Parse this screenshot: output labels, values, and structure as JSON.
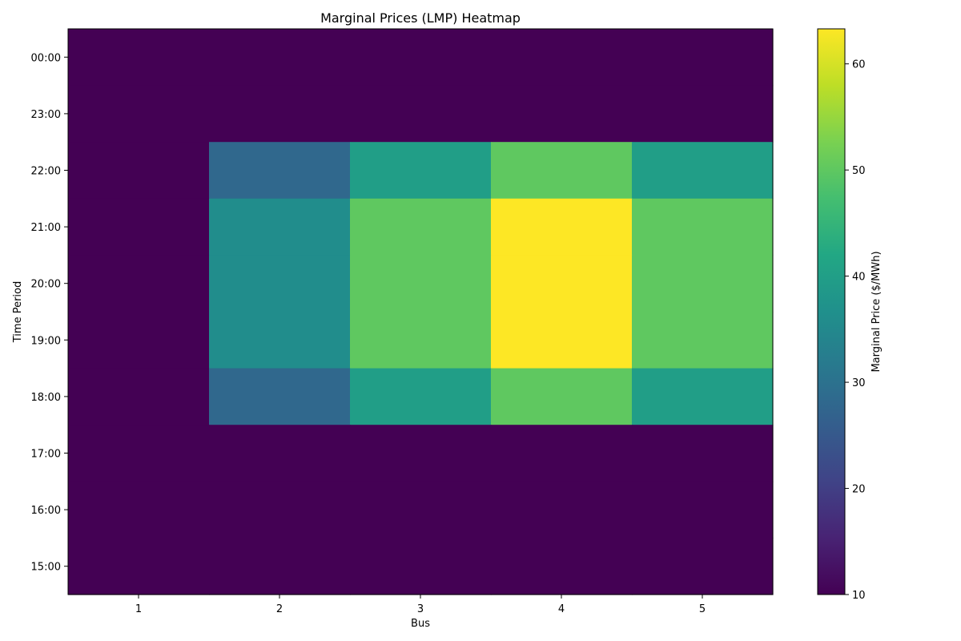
{
  "chart_data": {
    "type": "heatmap",
    "title": "Marginal Prices (LMP) Heatmap",
    "xlabel": "Bus",
    "ylabel": "Time Period",
    "x_categories": [
      "1",
      "2",
      "3",
      "4",
      "5"
    ],
    "y_categories": [
      "00:00",
      "23:00",
      "22:00",
      "21:00",
      "20:00",
      "19:00",
      "18:00",
      "17:00",
      "16:00",
      "15:00"
    ],
    "values": [
      [
        10,
        10,
        10,
        10,
        10
      ],
      [
        10,
        10,
        10,
        10,
        10
      ],
      [
        10,
        28,
        40,
        50,
        40
      ],
      [
        10,
        36,
        50,
        63.3,
        50
      ],
      [
        10,
        36,
        50,
        63.3,
        50
      ],
      [
        10,
        36,
        50,
        63.3,
        50
      ],
      [
        10,
        28,
        40,
        50,
        40
      ],
      [
        10,
        10,
        10,
        10,
        10
      ],
      [
        10,
        10,
        10,
        10,
        10
      ],
      [
        10,
        10,
        10,
        10,
        10
      ]
    ],
    "colormap": "viridis",
    "color_range": [
      10,
      63.3
    ],
    "colorbar": {
      "label": "Marginal Price ($/MWh)",
      "ticks": [
        10,
        20,
        30,
        40,
        50,
        60
      ]
    }
  }
}
